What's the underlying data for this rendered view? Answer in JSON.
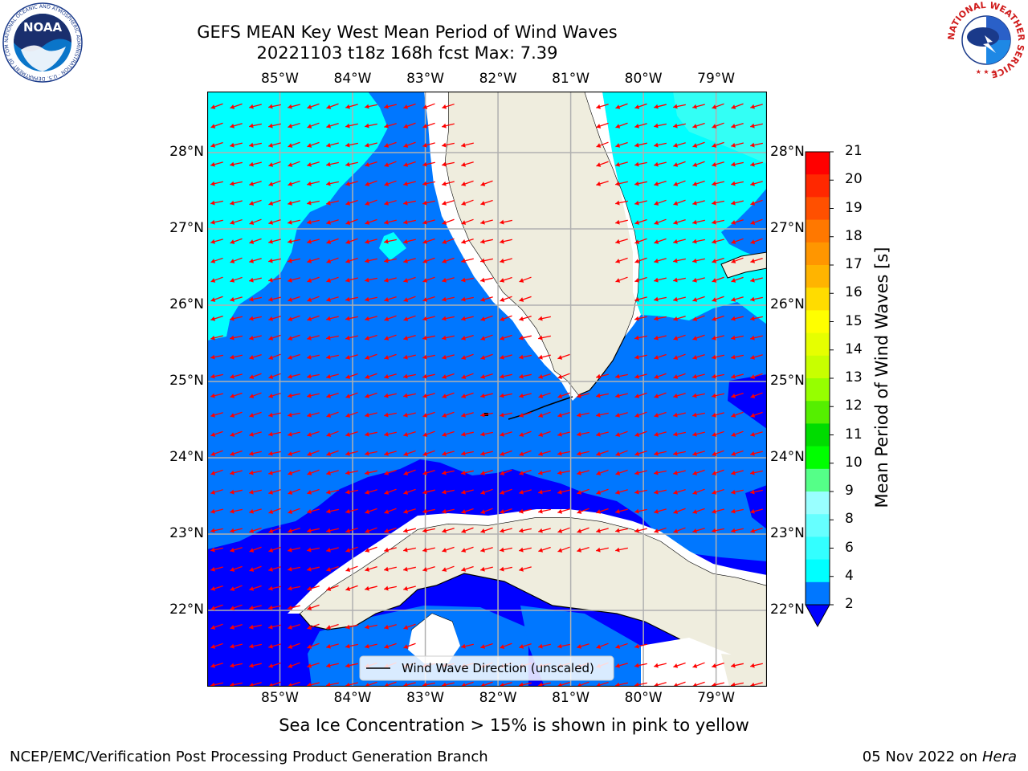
{
  "title": {
    "line1": "GEFS MEAN Key West Mean Period of Wind Waves",
    "line2": "20221103 t18z 168h fcst   Max: 7.39"
  },
  "map": {
    "lon_range": [
      -86,
      -78.3
    ],
    "lat_range": [
      21,
      28.8
    ],
    "lon_ticks": [
      "85°W",
      "84°W",
      "83°W",
      "82°W",
      "81°W",
      "80°W",
      "79°W"
    ],
    "lat_ticks": [
      "28°N",
      "27°N",
      "26°N",
      "25°N",
      "24°N",
      "23°N",
      "22°N"
    ],
    "grid": true,
    "legend_label": "Wind Wave Direction (unscaled)",
    "legend_placement": "bottom-center",
    "colors": {
      "land": "#efedde",
      "band_2_4": "#0077ff",
      "band_4_6": "#00ffff",
      "below_2": "#0000ff",
      "arrow": "#ff0000",
      "grid": "#b0b0b0"
    }
  },
  "colorbar": {
    "label": "Mean Period of Wind Waves [s]",
    "ticks": [
      "21",
      "20",
      "19",
      "18",
      "17",
      "16",
      "15",
      "14",
      "13",
      "12",
      "11",
      "10",
      "9",
      "8",
      "6",
      "4",
      "2"
    ],
    "colors": [
      "#ff0000",
      "#ff2800",
      "#ff5000",
      "#ff7800",
      "#ff9600",
      "#ffb400",
      "#ffdc00",
      "#ffff00",
      "#e6ff00",
      "#c8ff00",
      "#96ff00",
      "#55ef00",
      "#00dc00",
      "#00ff00",
      "#55ff88",
      "#99ffff",
      "#66ffff",
      "#33ffff",
      "#00ffff",
      "#0077ff"
    ],
    "extend_color": "#0000ff"
  },
  "ice_note": "Sea Ice Concentration > 15% is shown in pink to yellow",
  "footer": {
    "left": "NCEP/EMC/Verification Post Processing Product Generation Branch",
    "date": "05 Nov 2022 on",
    "host": "Hera"
  },
  "logos": {
    "left": "NOAA",
    "left_ring": "NATIONAL OCEANIC AND ATMOSPHERIC ADMINISTRATION · U.S. DEPARTMENT OF COMMERCE",
    "right_ring": "NATIONAL WEATHER SERVICE"
  }
}
